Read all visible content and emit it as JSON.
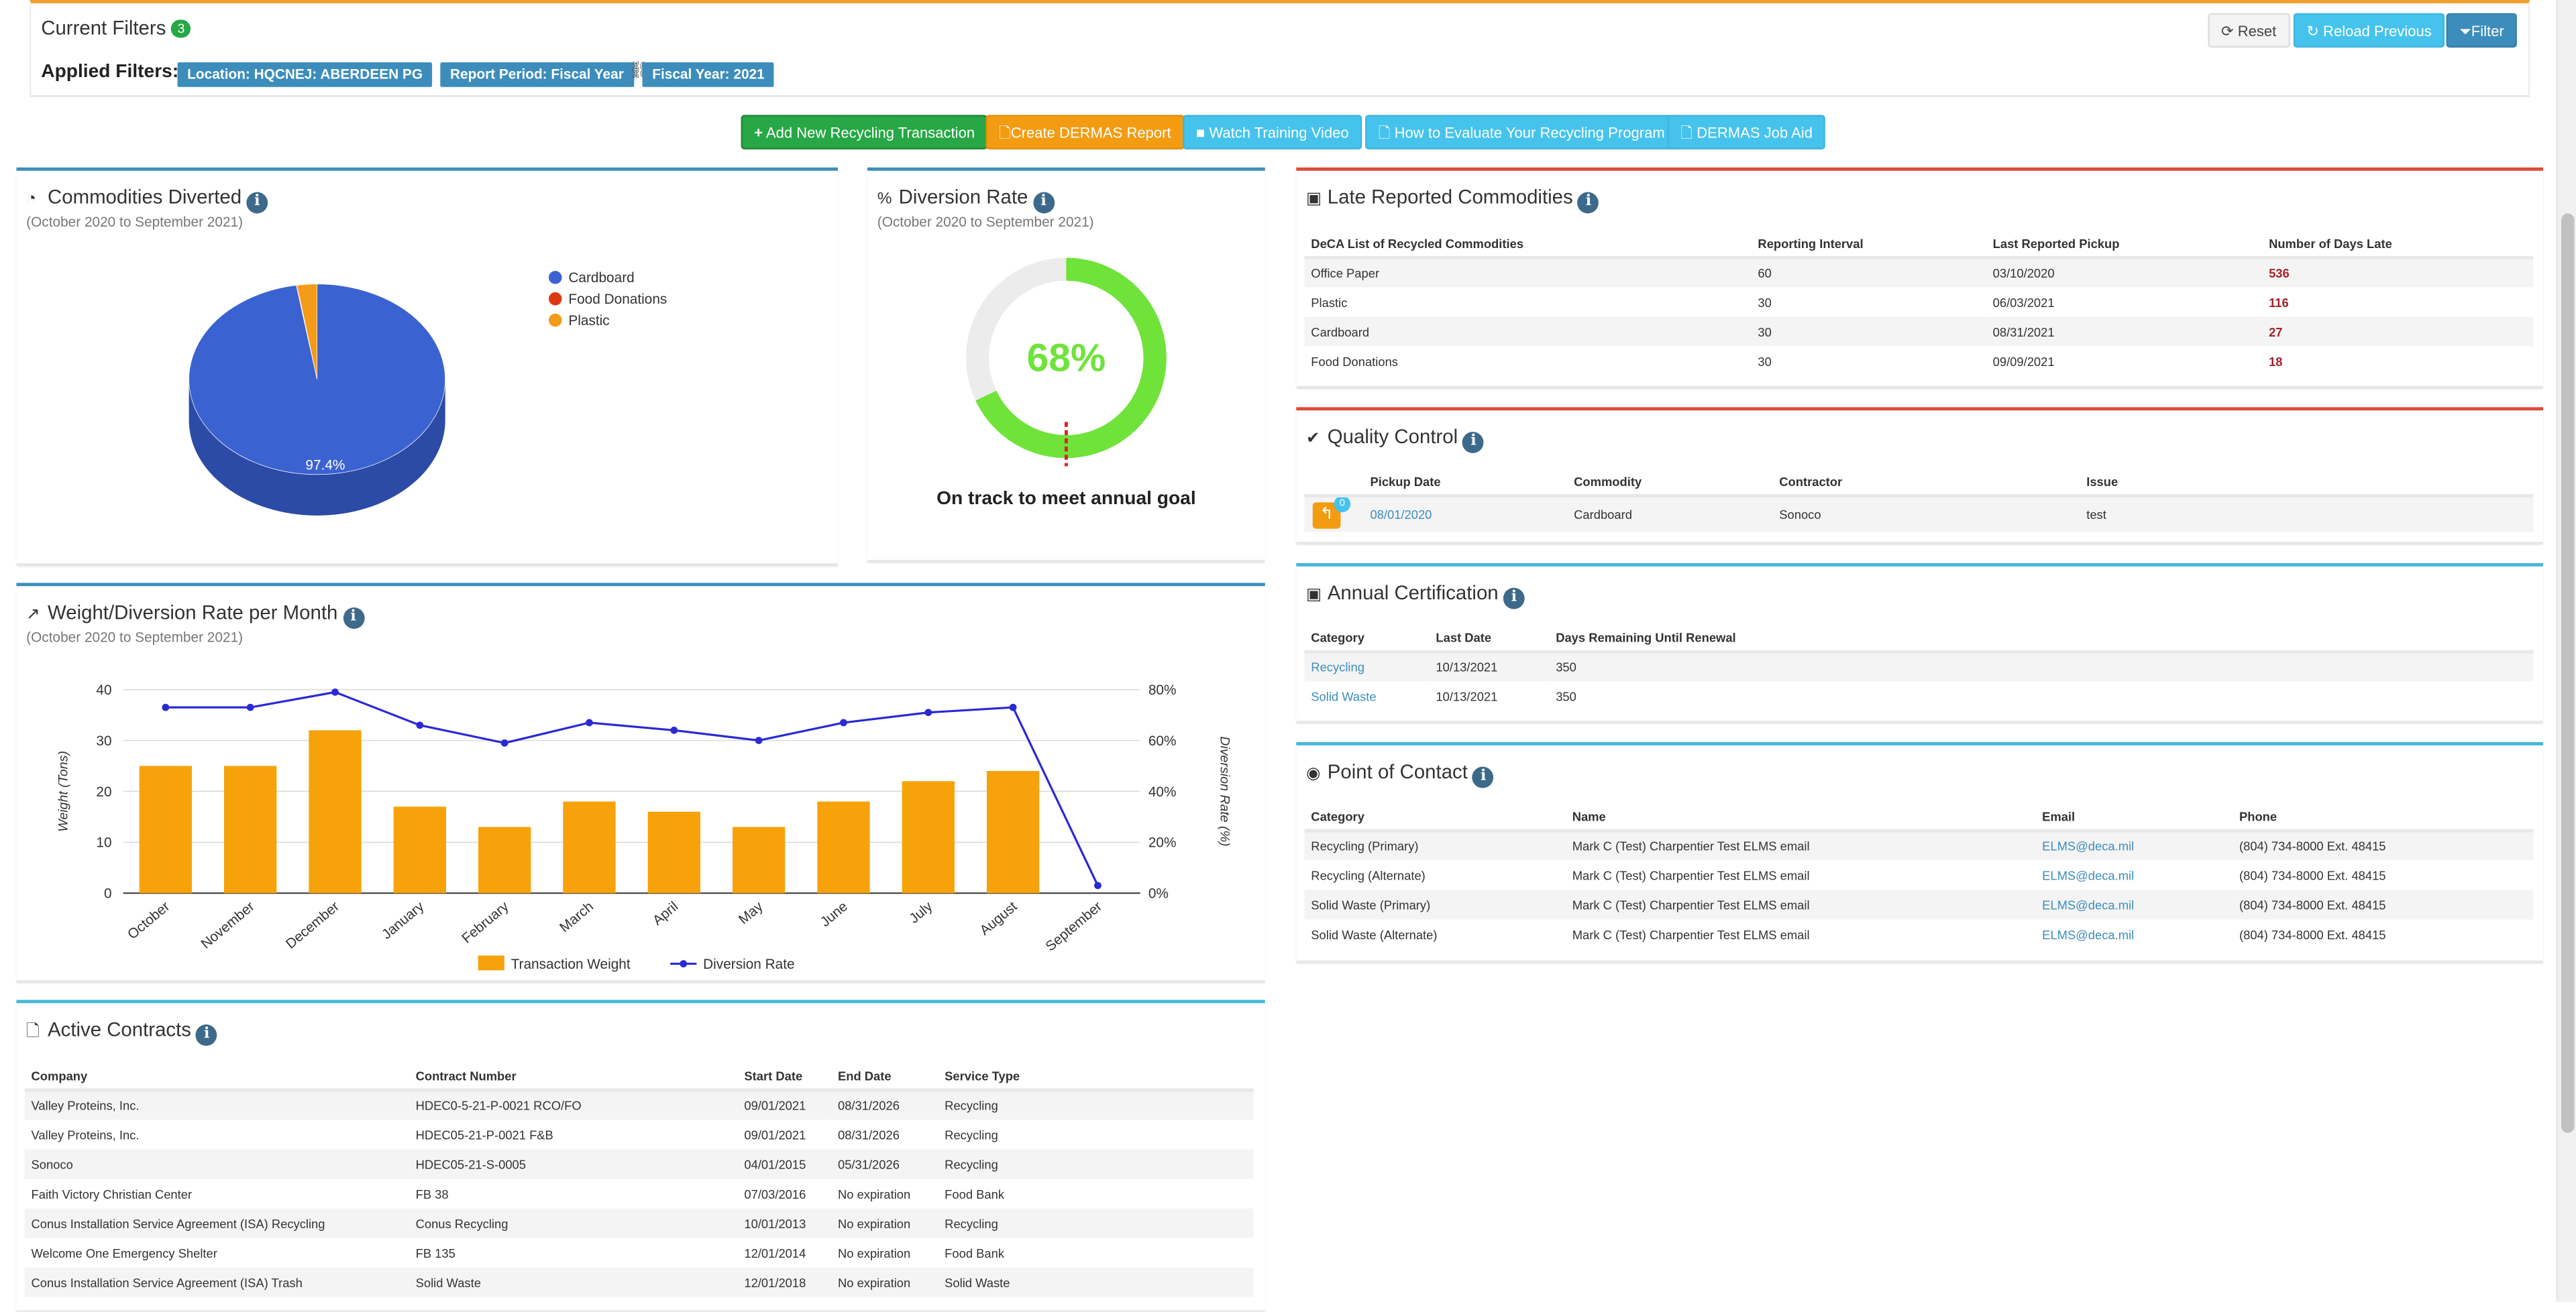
{
  "filters": {
    "title": "Current Filters",
    "count": "3",
    "applied_label": "Applied Filters:",
    "chips": [
      "Location: HQCNEJ: ABERDEEN PG",
      "Report Period: Fiscal Year",
      "Fiscal Year: 2021"
    ],
    "buttons": {
      "reset": "Reset",
      "reload": "Reload Previous",
      "filter": "Filter"
    }
  },
  "actions": {
    "add": "Add New Recycling Transaction",
    "dermas": "Create DERMAS Report",
    "video": "Watch Training Video",
    "evaluate": "How to Evaluate Your Recycling Program",
    "jobaid": "DERMAS Job Aid"
  },
  "commodities": {
    "title": "Commodities Diverted",
    "subtitle": "(October 2020 to September 2021)",
    "slice_label": "97.4%",
    "legend": [
      {
        "name": "Cardboard",
        "color": "#3b62d1"
      },
      {
        "name": "Food Donations",
        "color": "#dc3912"
      },
      {
        "name": "Plastic",
        "color": "#f49b1a"
      }
    ]
  },
  "diversion": {
    "title": "Diversion Rate",
    "subtitle": "(October 2020 to September 2021)",
    "value": "68%",
    "fraction": 0.68,
    "status": "On track to meet annual goal"
  },
  "late": {
    "title": "Late Reported Commodities",
    "headers": [
      "DeCA List of Recycled Commodities",
      "Reporting Interval",
      "Last Reported Pickup",
      "Number of Days Late"
    ],
    "rows": [
      [
        "Office Paper",
        "60",
        "03/10/2020",
        "536"
      ],
      [
        "Plastic",
        "30",
        "06/03/2021",
        "116"
      ],
      [
        "Cardboard",
        "30",
        "08/31/2021",
        "27"
      ],
      [
        "Food Donations",
        "30",
        "09/09/2021",
        "18"
      ]
    ]
  },
  "qc": {
    "title": "Quality Control",
    "badge": "0",
    "headers": [
      "Pickup Date",
      "Commodity",
      "Contractor",
      "Issue"
    ],
    "rows": [
      [
        "08/01/2020",
        "Cardboard",
        "Sonoco",
        "test"
      ]
    ]
  },
  "annual": {
    "title": "Annual Certification",
    "headers": [
      "Category",
      "Last Date",
      "Days Remaining Until Renewal"
    ],
    "rows": [
      [
        "Recycling",
        "10/13/2021",
        "350"
      ],
      [
        "Solid Waste",
        "10/13/2021",
        "350"
      ]
    ]
  },
  "poc": {
    "title": "Point of Contact",
    "headers": [
      "Category",
      "Name",
      "Email",
      "Phone"
    ],
    "rows": [
      [
        "Recycling (Primary)",
        "Mark C (Test) Charpentier Test ELMS email",
        "ELMS@deca.mil",
        "(804) 734-8000 Ext. 48415"
      ],
      [
        "Recycling (Alternate)",
        "Mark C (Test) Charpentier Test ELMS email",
        "ELMS@deca.mil",
        "(804) 734-8000 Ext. 48415"
      ],
      [
        "Solid Waste (Primary)",
        "Mark C (Test) Charpentier Test ELMS email",
        "ELMS@deca.mil",
        "(804) 734-8000 Ext. 48415"
      ],
      [
        "Solid Waste (Alternate)",
        "Mark C (Test) Charpentier Test ELMS email",
        "ELMS@deca.mil",
        "(804) 734-8000 Ext. 48415"
      ]
    ]
  },
  "weight_chart": {
    "title": "Weight/Diversion Rate per Month",
    "subtitle": "(October 2020 to September 2021)"
  },
  "contracts": {
    "title": "Active Contracts",
    "headers": [
      "Company",
      "Contract Number",
      "Start Date",
      "End Date",
      "Service Type"
    ],
    "rows": [
      [
        "Valley Proteins, Inc.",
        "HDEC0-5-21-P-0021 RCO/FO",
        "09/01/2021",
        "08/31/2026",
        "Recycling"
      ],
      [
        "Valley Proteins, Inc.",
        "HDEC05-21-P-0021 F&B",
        "09/01/2021",
        "08/31/2026",
        "Recycling"
      ],
      [
        "Sonoco",
        "HDEC05-21-S-0005",
        "04/01/2015",
        "05/31/2026",
        "Recycling"
      ],
      [
        "Faith Victory Christian Center",
        "FB 38",
        "07/03/2016",
        "No expiration",
        "Food Bank"
      ],
      [
        "Conus Installation Service Agreement (ISA) Recycling",
        "Conus Recycling",
        "10/01/2013",
        "No expiration",
        "Recycling"
      ],
      [
        "Welcome One Emergency Shelter",
        "FB 135",
        "12/01/2014",
        "No expiration",
        "Food Bank"
      ],
      [
        "Conus Installation Service Agreement (ISA) Trash",
        "Solid Waste",
        "12/01/2018",
        "No expiration",
        "Solid Waste"
      ]
    ]
  },
  "chart_data": [
    {
      "type": "pie",
      "categories": [
        "Cardboard",
        "Food Donations",
        "Plastic"
      ],
      "values": [
        97.4,
        0.1,
        2.5
      ],
      "colors": [
        "#3b62d1",
        "#dc3912",
        "#f49b1a"
      ],
      "legend": "right"
    },
    {
      "type": "bar",
      "categories": [
        "October",
        "November",
        "December",
        "January",
        "February",
        "March",
        "April",
        "May",
        "June",
        "July",
        "August",
        "September"
      ],
      "series": [
        {
          "name": "Transaction Weight",
          "type": "bar",
          "color": "#f7a20b",
          "values": [
            25,
            25,
            32,
            17,
            13,
            18,
            16,
            13,
            18,
            22,
            24,
            0
          ]
        },
        {
          "name": "Diversion Rate",
          "type": "line",
          "color": "#2a2ad4",
          "values": [
            73,
            73,
            79,
            66,
            59,
            67,
            64,
            60,
            67,
            71,
            73,
            3
          ]
        }
      ],
      "ylabel": "Weight (Tons)",
      "y2label": "Diversion Rate (%)",
      "ylim": [
        0,
        40
      ],
      "y2lim": [
        0,
        80
      ],
      "yticks": [
        "0",
        "10",
        "20",
        "30",
        "40"
      ],
      "y2ticks": [
        "0%",
        "20%",
        "40%",
        "60%",
        "80%"
      ],
      "grid": true,
      "legend": "bottom"
    }
  ]
}
